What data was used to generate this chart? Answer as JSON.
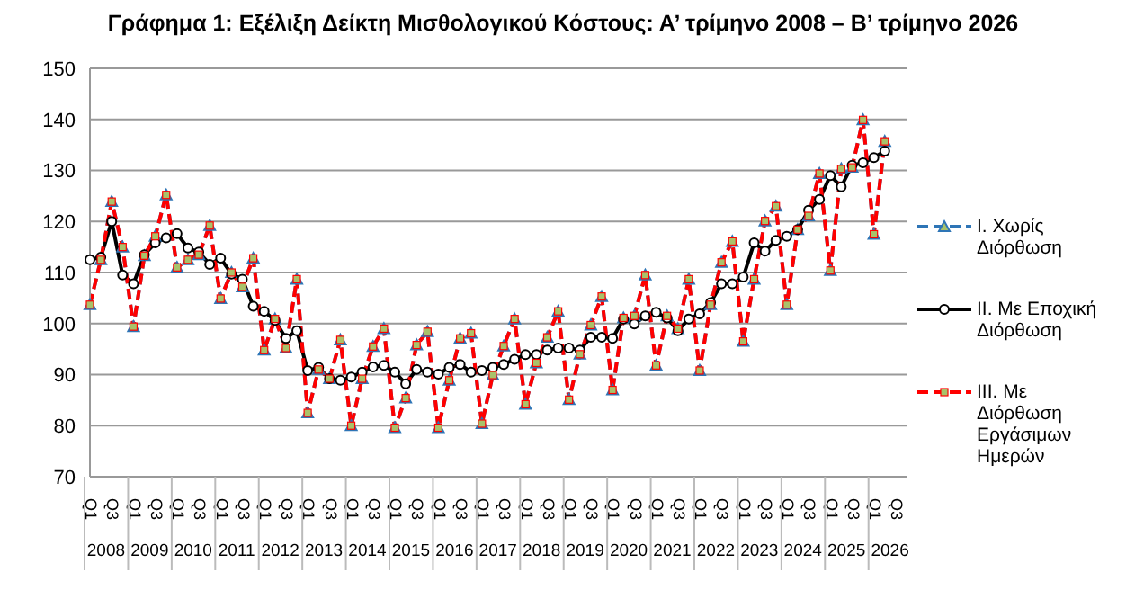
{
  "chart_data": {
    "type": "line",
    "title": "Γράφημα 1: Εξέλιξη Δείκτη Μισθολογικού Κόστους:  Α’ τρίμηνο 2008 – Β’ τρίμηνο 2026",
    "categories": [
      "Q1",
      null,
      "Q3",
      null,
      "Q1",
      null,
      "Q3",
      null,
      "Q1",
      null,
      "Q3",
      null,
      "Q1",
      null,
      "Q3",
      null,
      "Q1",
      null,
      "Q3",
      null,
      "Q1",
      null,
      "Q3",
      null,
      "Q1",
      null,
      "Q3",
      null,
      "Q1",
      null,
      "Q3",
      null,
      "Q1",
      null,
      "Q3",
      null,
      "Q1",
      null,
      "Q3",
      null,
      "Q1",
      null,
      "Q3",
      null,
      "Q1",
      null,
      "Q3",
      null,
      "Q1",
      null,
      "Q3",
      null,
      "Q1",
      null,
      "Q3",
      null,
      "Q1",
      null,
      "Q3",
      null,
      "Q1",
      null,
      "Q3",
      null,
      "Q1",
      null,
      "Q3",
      null,
      "Q1",
      null,
      "Q3",
      null,
      "Q1",
      null,
      "Q3",
      null
    ],
    "annotations": [
      "2008",
      "2009",
      "2010",
      "2011",
      "2012",
      "2013",
      "2014",
      "2015",
      "2016",
      "2017",
      "2018",
      "2019",
      "2020",
      "2021",
      "2022",
      "2023",
      "2024",
      "2025",
      "2026"
    ],
    "series": [
      {
        "name": "I. Χωρίς Διόρθωση",
        "color": "#2e75b6",
        "marker": "triangle",
        "line_style": "dashed",
        "values": [
          103.7,
          112.5,
          123.9,
          115,
          99.4,
          113.3,
          117.1,
          125.2,
          111,
          112.5,
          113.5,
          119.2,
          104.9,
          110,
          107.2,
          112.8,
          94.8,
          100.9,
          95.2,
          108.7,
          82.5,
          91,
          89.2,
          96.8,
          80,
          89.2,
          95.5,
          99,
          79.6,
          85.4,
          95.8,
          98.4,
          79.6,
          88.9,
          97.1,
          98.1,
          80.4,
          89.9,
          95.6,
          100.9,
          84.2,
          92.3,
          97.3,
          102.4,
          85.1,
          94,
          99.7,
          105.3,
          87,
          101.1,
          101.5,
          109.5,
          91.8,
          101.5,
          99,
          108.7,
          90.8,
          103.7,
          112,
          116.1,
          96.5,
          108.7,
          120.1,
          123,
          103.7,
          118.4,
          121.1,
          129.4,
          110.4,
          130.3,
          130.6,
          139.9,
          117.5,
          135.7,
          null,
          null
        ]
      },
      {
        "name": "II. Με Εποχική Διόρθωση",
        "color": "#000000",
        "marker": "circle",
        "line_style": "solid",
        "values": [
          112.5,
          113,
          120,
          109.5,
          107.8,
          113.5,
          115.8,
          116.8,
          117.6,
          114.8,
          114,
          111.6,
          112.8,
          109.7,
          108.7,
          103.4,
          102.4,
          100.6,
          97.1,
          98.6,
          90.8,
          91.4,
          89.2,
          88.9,
          89.5,
          90.5,
          91.5,
          91.8,
          90.5,
          88.2,
          91,
          90.5,
          90.1,
          91.4,
          92,
          90.5,
          90.8,
          91.4,
          92,
          93,
          93.9,
          93.9,
          94.8,
          95.2,
          95.2,
          94.8,
          97.3,
          97.3,
          97.1,
          100.9,
          99.9,
          101.5,
          102.2,
          101.1,
          98.6,
          100.9,
          101.9,
          104.1,
          107.8,
          107.8,
          109.1,
          115.8,
          114.2,
          116.3,
          117.1,
          118.4,
          122.2,
          124.3,
          129,
          126.8,
          131,
          131.5,
          132.5,
          133.8,
          null,
          null
        ]
      },
      {
        "name": "III. Με Διόρθωση Εργάσιμων Ημερών",
        "color": "#ff0000",
        "marker": "square",
        "line_style": "dashed",
        "values": [
          103.7,
          112.5,
          123.9,
          115,
          99.4,
          113.3,
          117.1,
          125.2,
          111,
          112.5,
          113.5,
          119.2,
          104.9,
          110,
          107.2,
          112.8,
          94.8,
          100.9,
          95.2,
          108.7,
          82.5,
          91,
          89.2,
          96.8,
          80,
          89.2,
          95.5,
          99,
          79.6,
          85.4,
          95.8,
          98.4,
          79.6,
          88.9,
          97.1,
          98.1,
          80.4,
          89.9,
          95.6,
          100.9,
          84.2,
          92.3,
          97.3,
          102.4,
          85.1,
          94,
          99.7,
          105.3,
          87,
          101.1,
          101.5,
          109.5,
          91.8,
          101.5,
          99,
          108.7,
          90.8,
          103.7,
          112,
          116.1,
          96.5,
          108.7,
          120.1,
          123,
          103.7,
          118.4,
          121.1,
          129.4,
          110.4,
          130.3,
          130.6,
          139.9,
          117.5,
          135.7,
          null,
          null
        ]
      }
    ],
    "ylim": [
      70,
      150
    ],
    "yticks": [
      70,
      80,
      90,
      100,
      110,
      120,
      130,
      140,
      150
    ],
    "grid": "y",
    "legend": "right"
  }
}
